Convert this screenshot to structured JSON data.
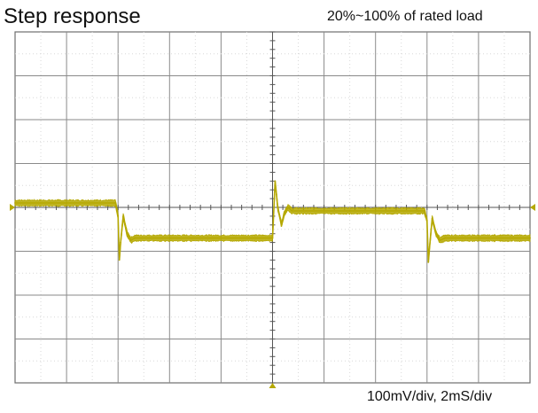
{
  "chart_data": {
    "type": "line",
    "title": "Step response",
    "subtitle": "20%~100% of rated load",
    "footer": "100mV/div, 2mS/div",
    "x_units": "ms",
    "y_units": "mV",
    "xlim": [
      0,
      20
    ],
    "ylim": [
      -400,
      400
    ],
    "grid": true,
    "trace_color": "#b5a800",
    "series": [
      {
        "name": "",
        "x": [
          0,
          3.9,
          4.0,
          4.05,
          4.1,
          4.2,
          4.35,
          4.5,
          4.65,
          6.0,
          10.0,
          10.1,
          10.15,
          10.2,
          10.35,
          10.45,
          10.6,
          10.75,
          13.0,
          15.9,
          16.0,
          16.05,
          16.1,
          16.2,
          16.35,
          16.5,
          16.7,
          20.0
        ],
        "y": [
          10,
          10,
          -20,
          -120,
          -80,
          -20,
          -60,
          -75,
          -70,
          -70,
          -70,
          60,
          30,
          0,
          -40,
          -15,
          0,
          -8,
          -8,
          -8,
          -30,
          -125,
          -90,
          -25,
          -60,
          -75,
          -70,
          -70
        ],
        "noise_mV": 8
      }
    ]
  }
}
